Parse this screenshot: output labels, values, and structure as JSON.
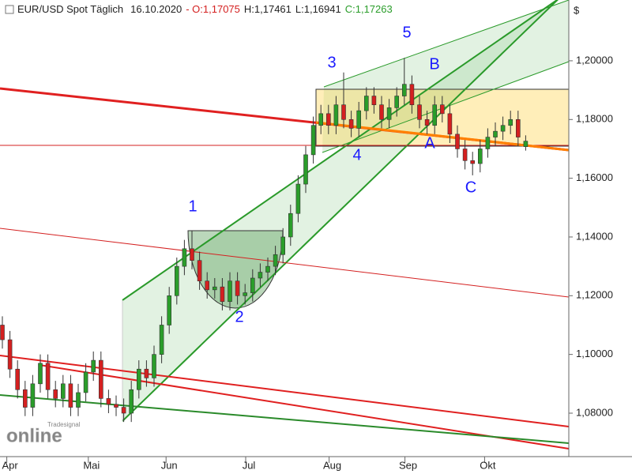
{
  "header": {
    "instrument": "EUR/USD Spot Täglich",
    "date": "16.10.2020",
    "open": "- O:1,17075",
    "high": "H:1,17461",
    "low": "L:1,16941",
    "close": "C:1,17263"
  },
  "watermark": {
    "small": "Tradesignal",
    "big": "online"
  },
  "annotations": [
    "1",
    "2",
    "3",
    "4",
    "5",
    "A",
    "B",
    "C"
  ],
  "chart_data": {
    "type": "candlestick",
    "up_color": "#2a9d2a",
    "down_color": "#d42020",
    "x": [
      0,
      2,
      4,
      6,
      8,
      10,
      12,
      14,
      16,
      18,
      20,
      22,
      24,
      26,
      28,
      30,
      32,
      34,
      36,
      38,
      40,
      42,
      44,
      46,
      48,
      50,
      52,
      54,
      56,
      58,
      60,
      62,
      64,
      66,
      68,
      70,
      72,
      74,
      76,
      78,
      80,
      82,
      84,
      86,
      88,
      90,
      92,
      94,
      96,
      98,
      100,
      102,
      104,
      106,
      108,
      110,
      112,
      114,
      116,
      118,
      120,
      122,
      124,
      126,
      128,
      130,
      132,
      134,
      136,
      138
    ],
    "open": [
      1.11,
      1.105,
      1.095,
      1.088,
      1.082,
      1.09,
      1.097,
      1.088,
      1.085,
      1.09,
      1.082,
      1.087,
      1.094,
      1.098,
      1.085,
      1.083,
      1.082,
      1.08,
      1.088,
      1.095,
      1.092,
      1.1,
      1.11,
      1.12,
      1.13,
      1.136,
      1.132,
      1.125,
      1.122,
      1.123,
      1.118,
      1.125,
      1.12,
      1.121,
      1.126,
      1.128,
      1.13,
      1.134,
      1.14,
      1.148,
      1.158,
      1.168,
      1.178,
      1.182,
      1.178,
      1.185,
      1.18,
      1.177,
      1.183,
      1.188,
      1.185,
      1.18,
      1.184,
      1.188,
      1.192,
      1.185,
      1.18,
      1.178,
      1.185,
      1.182,
      1.175,
      1.17,
      1.166,
      1.165,
      1.17,
      1.174,
      1.176,
      1.178,
      1.18,
      1.17075
    ],
    "high": [
      1.113,
      1.108,
      1.098,
      1.091,
      1.093,
      1.1,
      1.1,
      1.091,
      1.093,
      1.093,
      1.09,
      1.097,
      1.101,
      1.101,
      1.088,
      1.086,
      1.085,
      1.091,
      1.098,
      1.098,
      1.103,
      1.113,
      1.123,
      1.133,
      1.139,
      1.142,
      1.135,
      1.128,
      1.126,
      1.126,
      1.128,
      1.128,
      1.124,
      1.129,
      1.131,
      1.133,
      1.137,
      1.143,
      1.151,
      1.161,
      1.171,
      1.181,
      1.185,
      1.185,
      1.188,
      1.196,
      1.183,
      1.186,
      1.191,
      1.191,
      1.188,
      1.187,
      1.191,
      1.201,
      1.195,
      1.188,
      1.183,
      1.188,
      1.188,
      1.185,
      1.178,
      1.173,
      1.169,
      1.173,
      1.177,
      1.179,
      1.181,
      1.183,
      1.183,
      1.17461
    ],
    "low": [
      1.102,
      1.092,
      1.085,
      1.079,
      1.079,
      1.087,
      1.085,
      1.082,
      1.082,
      1.079,
      1.079,
      1.084,
      1.091,
      1.082,
      1.08,
      1.079,
      1.077,
      1.077,
      1.085,
      1.089,
      1.089,
      1.097,
      1.107,
      1.117,
      1.127,
      1.129,
      1.122,
      1.119,
      1.119,
      1.115,
      1.115,
      1.117,
      1.117,
      1.118,
      1.123,
      1.125,
      1.127,
      1.131,
      1.137,
      1.145,
      1.155,
      1.165,
      1.175,
      1.175,
      1.175,
      1.177,
      1.174,
      1.174,
      1.18,
      1.182,
      1.177,
      1.177,
      1.181,
      1.185,
      1.182,
      1.177,
      1.175,
      1.175,
      1.179,
      1.172,
      1.167,
      1.163,
      1.161,
      1.162,
      1.167,
      1.171,
      1.173,
      1.175,
      1.171,
      1.16941
    ],
    "close": [
      1.105,
      1.095,
      1.088,
      1.082,
      1.09,
      1.097,
      1.088,
      1.085,
      1.09,
      1.082,
      1.087,
      1.094,
      1.098,
      1.085,
      1.083,
      1.082,
      1.08,
      1.088,
      1.095,
      1.092,
      1.1,
      1.11,
      1.12,
      1.13,
      1.136,
      1.132,
      1.125,
      1.122,
      1.123,
      1.118,
      1.125,
      1.12,
      1.121,
      1.126,
      1.128,
      1.13,
      1.134,
      1.14,
      1.148,
      1.158,
      1.168,
      1.178,
      1.182,
      1.178,
      1.185,
      1.18,
      1.177,
      1.183,
      1.188,
      1.185,
      1.18,
      1.184,
      1.188,
      1.192,
      1.185,
      1.18,
      1.178,
      1.185,
      1.182,
      1.175,
      1.17,
      1.166,
      1.165,
      1.17,
      1.174,
      1.176,
      1.178,
      1.18,
      1.174,
      1.17263
    ],
    "xlim": [
      -0.625,
      149.375
    ],
    "xticks": [
      {
        "value": 2,
        "label": "Apr"
      },
      {
        "value": 23.5,
        "label": "Mai"
      },
      {
        "value": 44,
        "label": "Jun"
      },
      {
        "value": 65,
        "label": "Jul"
      },
      {
        "value": 87,
        "label": "Aug"
      },
      {
        "value": 107,
        "label": "Sep"
      },
      {
        "value": 128,
        "label": "Okt"
      }
    ],
    "ylim": [
      1.0652,
      1.2207
    ],
    "y_unit": "$",
    "yticks": [
      {
        "value": 1.08,
        "label": "1,08000"
      },
      {
        "value": 1.1,
        "label": "1,10000"
      },
      {
        "value": 1.12,
        "label": "1,12000"
      },
      {
        "value": 1.14,
        "label": "1,14000"
      },
      {
        "value": 1.16,
        "label": "1,16000"
      },
      {
        "value": 1.18,
        "label": "1,18000"
      },
      {
        "value": 1.2,
        "label": "1,20000"
      }
    ]
  }
}
